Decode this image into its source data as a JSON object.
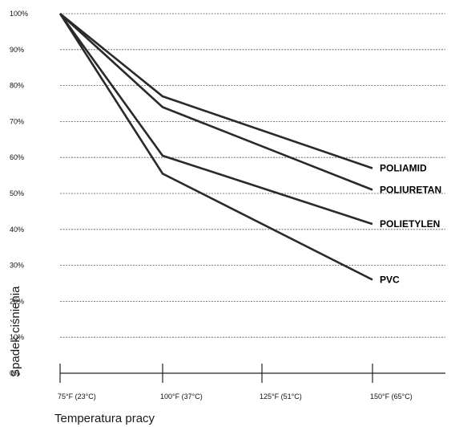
{
  "chart_data": {
    "type": "line",
    "title": "",
    "xlabel": "Temperatura pracy",
    "ylabel": "Spadek ciśnienia",
    "categories": [
      "75°F (23°C)",
      "100°F (37°C)",
      "125°F (51°C)",
      "150°F (65°C)"
    ],
    "x": [
      75,
      100,
      125,
      150
    ],
    "ylim": [
      0,
      100
    ],
    "yticks": [
      0,
      10,
      20,
      30,
      40,
      50,
      60,
      70,
      80,
      90,
      100
    ],
    "ytick_labels": [
      "0%",
      "10%",
      "20%",
      "30%",
      "40%",
      "50%",
      "60%",
      "70%",
      "80%",
      "90%",
      "100%"
    ],
    "grid": "horizontal dashed",
    "legend": "labels at line ends",
    "series": [
      {
        "name": "POLIAMID",
        "x": [
          75,
          100,
          150
        ],
        "values": [
          100,
          77,
          57
        ]
      },
      {
        "name": "POLIURETAN",
        "x": [
          75,
          100,
          150
        ],
        "values": [
          100,
          74,
          51
        ]
      },
      {
        "name": "POLIETYLEN",
        "x": [
          75,
          100,
          150
        ],
        "values": [
          100,
          60.5,
          41.5
        ]
      },
      {
        "name": "PVC",
        "x": [
          75,
          100,
          150
        ],
        "values": [
          100,
          55.5,
          26
        ]
      }
    ],
    "colors": {
      "line": "#2a2a2a",
      "grid": "#555555",
      "text": "#111111"
    }
  }
}
